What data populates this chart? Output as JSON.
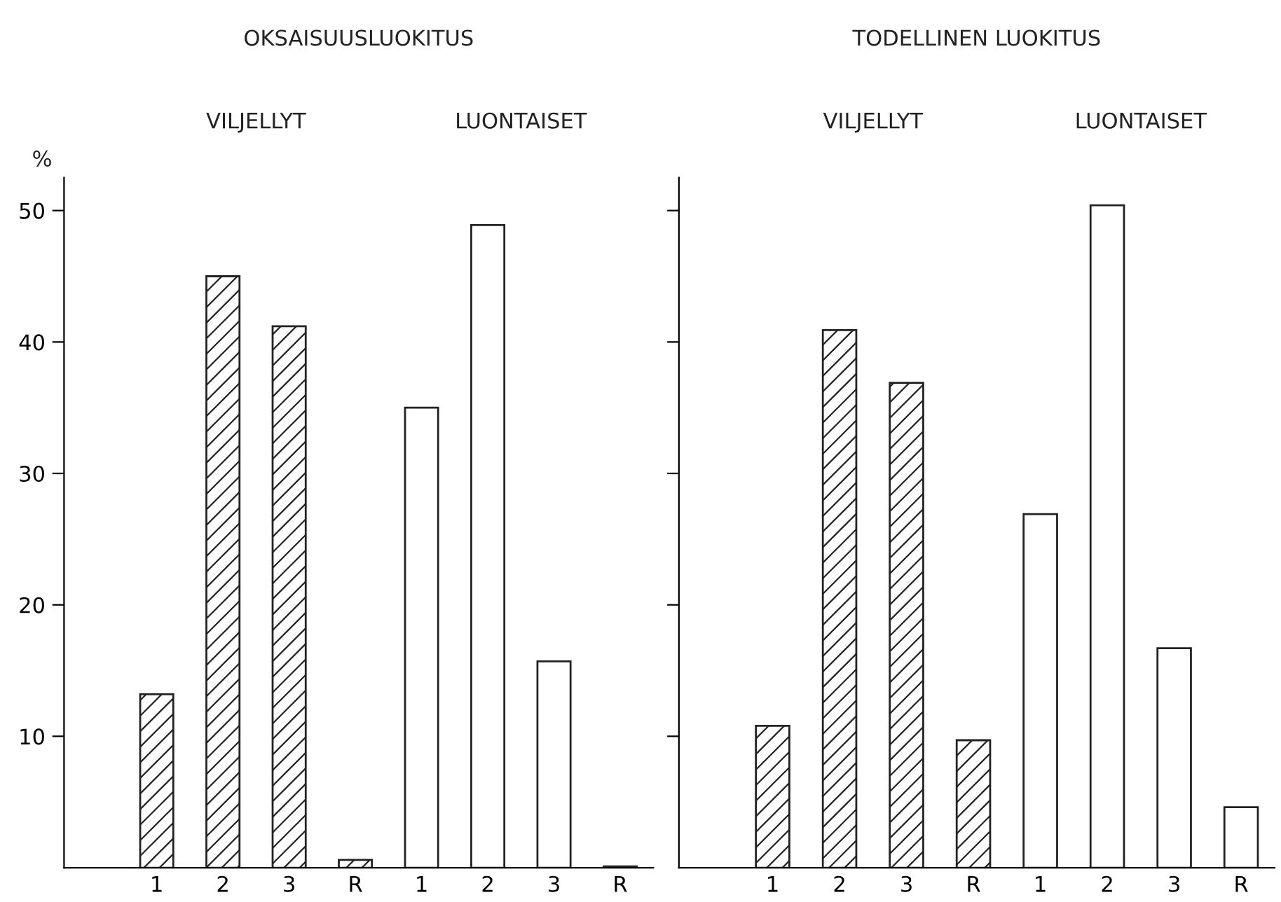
{
  "chart_data": [
    {
      "type": "bar",
      "title": "OKSAISUUSLUOKITUS",
      "ylabel": "%",
      "annotations": [
        "VILJELLYT",
        "LUONTAISET"
      ],
      "categories": [
        "1",
        "2",
        "3",
        "R",
        "1",
        "2",
        "3",
        "R"
      ],
      "ylim": [
        0,
        52.5
      ],
      "yticks": [
        10,
        20,
        30,
        40,
        50
      ],
      "series": [
        {
          "color": "#222222",
          "values": [
            13.2,
            45.0,
            41.2,
            0.6,
            null,
            null,
            null,
            null
          ]
        },
        {
          "color": "#222222",
          "values": [
            null,
            null,
            null,
            null,
            35.0,
            48.9,
            15.7,
            0.1
          ]
        }
      ]
    },
    {
      "type": "bar",
      "title": "TODELLINEN LUOKITUS",
      "annotations": [
        "VILJELLYT",
        "LUONTAISET"
      ],
      "categories": [
        "1",
        "2",
        "3",
        "R",
        "1",
        "2",
        "3",
        "R"
      ],
      "ylim": [
        0,
        52.5
      ],
      "yticks": [
        10,
        20,
        30,
        40,
        50
      ],
      "tick_labels": "x",
      "series": [
        {
          "color": "#222222",
          "values": [
            10.8,
            40.9,
            36.9,
            9.7,
            null,
            null,
            null,
            null
          ]
        },
        {
          "color": "#222222",
          "values": [
            null,
            null,
            null,
            null,
            26.9,
            50.4,
            16.7,
            4.6
          ]
        }
      ]
    }
  ]
}
